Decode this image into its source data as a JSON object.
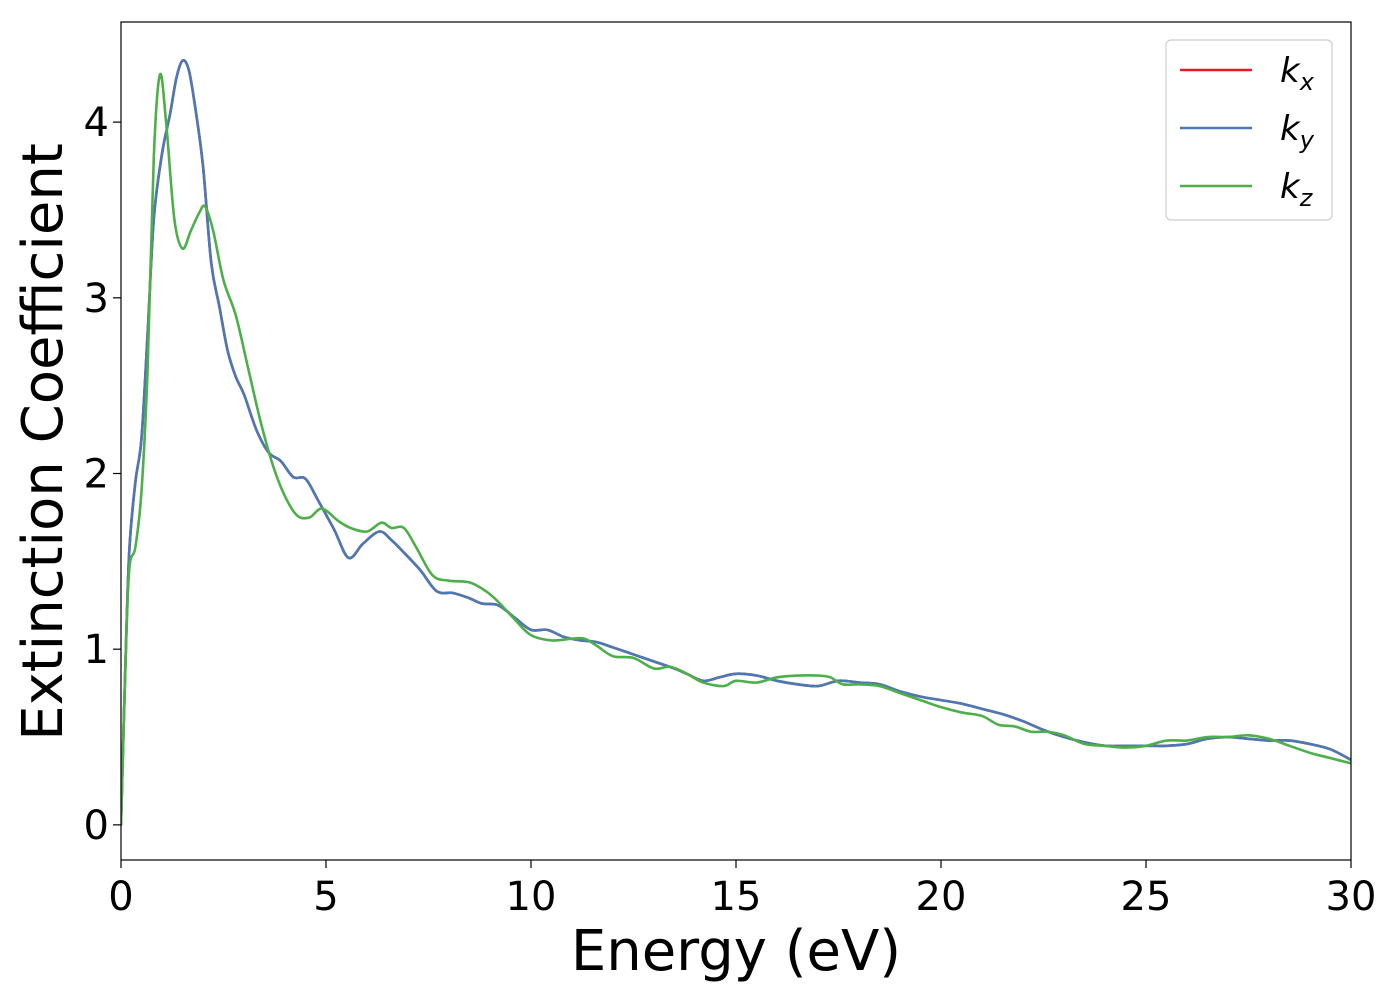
{
  "chart_data": {
    "type": "line",
    "title": "",
    "xlabel": "Energy (eV)",
    "ylabel": "Extinction Coefficient",
    "xlim": [
      0,
      30
    ],
    "ylim": [
      -0.2,
      4.57
    ],
    "xticks": [
      0,
      5,
      10,
      15,
      20,
      25,
      30
    ],
    "yticks": [
      0,
      1,
      2,
      3,
      4
    ],
    "grid": false,
    "legend_position": "top-right",
    "series": [
      {
        "name": "k_x",
        "label_base": "k",
        "label_sub": "x",
        "color": "#e41a1c",
        "points": [
          [
            0,
            0
          ],
          [
            0.1,
            0.85
          ],
          [
            0.2,
            1.55
          ],
          [
            0.35,
            1.95
          ],
          [
            0.5,
            2.2
          ],
          [
            0.65,
            2.8
          ],
          [
            0.8,
            3.45
          ],
          [
            1.0,
            3.82
          ],
          [
            1.2,
            4.05
          ],
          [
            1.35,
            4.25
          ],
          [
            1.5,
            4.35
          ],
          [
            1.65,
            4.3
          ],
          [
            1.8,
            4.1
          ],
          [
            2.0,
            3.75
          ],
          [
            2.2,
            3.2
          ],
          [
            2.4,
            2.95
          ],
          [
            2.6,
            2.7
          ],
          [
            2.8,
            2.55
          ],
          [
            3.0,
            2.45
          ],
          [
            3.3,
            2.25
          ],
          [
            3.6,
            2.12
          ],
          [
            3.9,
            2.07
          ],
          [
            4.2,
            1.98
          ],
          [
            4.5,
            1.97
          ],
          [
            4.8,
            1.85
          ],
          [
            5.2,
            1.68
          ],
          [
            5.55,
            1.52
          ],
          [
            5.9,
            1.6
          ],
          [
            6.3,
            1.67
          ],
          [
            6.6,
            1.62
          ],
          [
            6.9,
            1.55
          ],
          [
            7.3,
            1.45
          ],
          [
            7.7,
            1.33
          ],
          [
            8.1,
            1.32
          ],
          [
            8.5,
            1.29
          ],
          [
            8.8,
            1.26
          ],
          [
            9.2,
            1.25
          ],
          [
            9.6,
            1.18
          ],
          [
            10.0,
            1.11
          ],
          [
            10.4,
            1.11
          ],
          [
            10.8,
            1.07
          ],
          [
            11.2,
            1.05
          ],
          [
            11.6,
            1.04
          ],
          [
            12.0,
            1.01
          ],
          [
            12.5,
            0.97
          ],
          [
            13.0,
            0.93
          ],
          [
            13.5,
            0.89
          ],
          [
            13.8,
            0.86
          ],
          [
            14.2,
            0.82
          ],
          [
            14.6,
            0.84
          ],
          [
            15.0,
            0.86
          ],
          [
            15.5,
            0.85
          ],
          [
            16.0,
            0.82
          ],
          [
            16.5,
            0.8
          ],
          [
            17.0,
            0.79
          ],
          [
            17.5,
            0.82
          ],
          [
            18.0,
            0.81
          ],
          [
            18.5,
            0.8
          ],
          [
            19.0,
            0.76
          ],
          [
            19.5,
            0.73
          ],
          [
            20.0,
            0.71
          ],
          [
            20.5,
            0.69
          ],
          [
            21.0,
            0.66
          ],
          [
            21.5,
            0.63
          ],
          [
            22.0,
            0.59
          ],
          [
            22.5,
            0.54
          ],
          [
            23.0,
            0.5
          ],
          [
            23.5,
            0.47
          ],
          [
            24.0,
            0.45
          ],
          [
            24.5,
            0.45
          ],
          [
            25.0,
            0.45
          ],
          [
            25.5,
            0.45
          ],
          [
            26.0,
            0.46
          ],
          [
            26.5,
            0.49
          ],
          [
            27.0,
            0.5
          ],
          [
            27.5,
            0.49
          ],
          [
            28.0,
            0.48
          ],
          [
            28.5,
            0.48
          ],
          [
            29.0,
            0.46
          ],
          [
            29.5,
            0.43
          ],
          [
            30.0,
            0.37
          ]
        ]
      },
      {
        "name": "k_y",
        "label_base": "k",
        "label_sub": "y",
        "color": "#4a7ab5",
        "points": [
          [
            0,
            0
          ],
          [
            0.1,
            0.85
          ],
          [
            0.2,
            1.55
          ],
          [
            0.35,
            1.95
          ],
          [
            0.5,
            2.2
          ],
          [
            0.65,
            2.8
          ],
          [
            0.8,
            3.45
          ],
          [
            1.0,
            3.82
          ],
          [
            1.2,
            4.05
          ],
          [
            1.35,
            4.25
          ],
          [
            1.5,
            4.35
          ],
          [
            1.65,
            4.3
          ],
          [
            1.8,
            4.1
          ],
          [
            2.0,
            3.75
          ],
          [
            2.2,
            3.2
          ],
          [
            2.4,
            2.95
          ],
          [
            2.6,
            2.7
          ],
          [
            2.8,
            2.55
          ],
          [
            3.0,
            2.45
          ],
          [
            3.3,
            2.25
          ],
          [
            3.6,
            2.12
          ],
          [
            3.9,
            2.07
          ],
          [
            4.2,
            1.98
          ],
          [
            4.5,
            1.97
          ],
          [
            4.8,
            1.85
          ],
          [
            5.2,
            1.68
          ],
          [
            5.55,
            1.52
          ],
          [
            5.9,
            1.6
          ],
          [
            6.3,
            1.67
          ],
          [
            6.6,
            1.62
          ],
          [
            6.9,
            1.55
          ],
          [
            7.3,
            1.45
          ],
          [
            7.7,
            1.33
          ],
          [
            8.1,
            1.32
          ],
          [
            8.5,
            1.29
          ],
          [
            8.8,
            1.26
          ],
          [
            9.2,
            1.25
          ],
          [
            9.6,
            1.18
          ],
          [
            10.0,
            1.11
          ],
          [
            10.4,
            1.11
          ],
          [
            10.8,
            1.07
          ],
          [
            11.2,
            1.05
          ],
          [
            11.6,
            1.04
          ],
          [
            12.0,
            1.01
          ],
          [
            12.5,
            0.97
          ],
          [
            13.0,
            0.93
          ],
          [
            13.5,
            0.89
          ],
          [
            13.8,
            0.86
          ],
          [
            14.2,
            0.82
          ],
          [
            14.6,
            0.84
          ],
          [
            15.0,
            0.86
          ],
          [
            15.5,
            0.85
          ],
          [
            16.0,
            0.82
          ],
          [
            16.5,
            0.8
          ],
          [
            17.0,
            0.79
          ],
          [
            17.5,
            0.82
          ],
          [
            18.0,
            0.81
          ],
          [
            18.5,
            0.8
          ],
          [
            19.0,
            0.76
          ],
          [
            19.5,
            0.73
          ],
          [
            20.0,
            0.71
          ],
          [
            20.5,
            0.69
          ],
          [
            21.0,
            0.66
          ],
          [
            21.5,
            0.63
          ],
          [
            22.0,
            0.59
          ],
          [
            22.5,
            0.54
          ],
          [
            23.0,
            0.5
          ],
          [
            23.5,
            0.47
          ],
          [
            24.0,
            0.45
          ],
          [
            24.5,
            0.45
          ],
          [
            25.0,
            0.45
          ],
          [
            25.5,
            0.45
          ],
          [
            26.0,
            0.46
          ],
          [
            26.5,
            0.49
          ],
          [
            27.0,
            0.5
          ],
          [
            27.5,
            0.49
          ],
          [
            28.0,
            0.48
          ],
          [
            28.5,
            0.48
          ],
          [
            29.0,
            0.46
          ],
          [
            29.5,
            0.43
          ],
          [
            30.0,
            0.37
          ]
        ]
      },
      {
        "name": "k_z",
        "label_base": "k",
        "label_sub": "z",
        "color": "#4daf4a",
        "points": [
          [
            0,
            0
          ],
          [
            0.1,
            0.85
          ],
          [
            0.2,
            1.45
          ],
          [
            0.35,
            1.58
          ],
          [
            0.5,
            1.9
          ],
          [
            0.65,
            2.6
          ],
          [
            0.8,
            3.8
          ],
          [
            0.95,
            4.27
          ],
          [
            1.1,
            4.0
          ],
          [
            1.3,
            3.45
          ],
          [
            1.5,
            3.28
          ],
          [
            1.7,
            3.38
          ],
          [
            1.9,
            3.48
          ],
          [
            2.05,
            3.52
          ],
          [
            2.25,
            3.38
          ],
          [
            2.5,
            3.1
          ],
          [
            2.8,
            2.9
          ],
          [
            3.1,
            2.6
          ],
          [
            3.4,
            2.3
          ],
          [
            3.7,
            2.05
          ],
          [
            4.0,
            1.87
          ],
          [
            4.3,
            1.76
          ],
          [
            4.6,
            1.75
          ],
          [
            4.9,
            1.8
          ],
          [
            5.3,
            1.73
          ],
          [
            5.6,
            1.69
          ],
          [
            6.0,
            1.67
          ],
          [
            6.35,
            1.72
          ],
          [
            6.6,
            1.69
          ],
          [
            6.9,
            1.69
          ],
          [
            7.2,
            1.58
          ],
          [
            7.6,
            1.42
          ],
          [
            8.0,
            1.39
          ],
          [
            8.5,
            1.38
          ],
          [
            8.9,
            1.33
          ],
          [
            9.2,
            1.27
          ],
          [
            9.6,
            1.17
          ],
          [
            10.0,
            1.08
          ],
          [
            10.5,
            1.05
          ],
          [
            11.0,
            1.06
          ],
          [
            11.3,
            1.06
          ],
          [
            11.6,
            1.02
          ],
          [
            12.0,
            0.96
          ],
          [
            12.5,
            0.95
          ],
          [
            13.0,
            0.89
          ],
          [
            13.4,
            0.9
          ],
          [
            13.8,
            0.86
          ],
          [
            14.2,
            0.81
          ],
          [
            14.7,
            0.79
          ],
          [
            15.0,
            0.82
          ],
          [
            15.5,
            0.81
          ],
          [
            16.0,
            0.84
          ],
          [
            16.5,
            0.85
          ],
          [
            17.0,
            0.85
          ],
          [
            17.3,
            0.84
          ],
          [
            17.6,
            0.8
          ],
          [
            18.0,
            0.8
          ],
          [
            18.5,
            0.79
          ],
          [
            19.0,
            0.75
          ],
          [
            19.5,
            0.71
          ],
          [
            20.0,
            0.67
          ],
          [
            20.5,
            0.64
          ],
          [
            21.0,
            0.62
          ],
          [
            21.4,
            0.57
          ],
          [
            21.8,
            0.56
          ],
          [
            22.2,
            0.53
          ],
          [
            22.6,
            0.53
          ],
          [
            23.0,
            0.51
          ],
          [
            23.5,
            0.46
          ],
          [
            24.0,
            0.45
          ],
          [
            24.5,
            0.44
          ],
          [
            25.0,
            0.45
          ],
          [
            25.5,
            0.48
          ],
          [
            26.0,
            0.48
          ],
          [
            26.5,
            0.5
          ],
          [
            27.0,
            0.5
          ],
          [
            27.5,
            0.51
          ],
          [
            28.0,
            0.49
          ],
          [
            28.5,
            0.45
          ],
          [
            29.0,
            0.41
          ],
          [
            29.5,
            0.38
          ],
          [
            30.0,
            0.35
          ]
        ]
      }
    ]
  }
}
